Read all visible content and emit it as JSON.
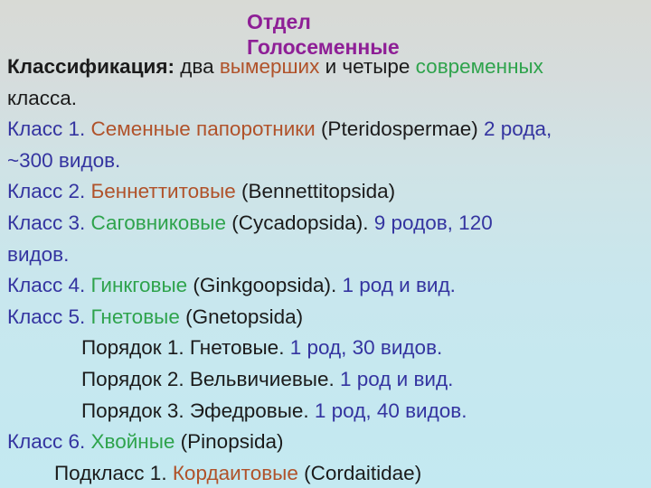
{
  "slide": {
    "colors": {
      "purple": "#8e1f96",
      "black": "#1b1b1b",
      "blue": "#3434a0",
      "green": "#2ea34c",
      "rust": "#b0522a",
      "bg_top": "#d8dad5",
      "bg_bottom": "#c3e9f1"
    },
    "title": {
      "color": "purple",
      "lines": [
        "Отдел",
        "Голосеменные"
      ]
    },
    "body_lines": [
      {
        "indent": 0,
        "segments": [
          {
            "text": "Классификация:",
            "color": "black",
            "bold": true
          },
          {
            "text": " два ",
            "color": "black"
          },
          {
            "text": "вымерших",
            "color": "rust"
          },
          {
            "text": " и четыре ",
            "color": "black"
          },
          {
            "text": "современных",
            "color": "green"
          }
        ]
      },
      {
        "indent": 0,
        "segments": [
          {
            "text": "класса.",
            "color": "black"
          }
        ]
      },
      {
        "indent": 0,
        "segments": [
          {
            "text": "Класс 1.",
            "color": "blue"
          },
          {
            "text": " Семенные папоротники",
            "color": "rust"
          },
          {
            "text": " (Pteridospermae)",
            "color": "black"
          },
          {
            "text": " 2 рода,",
            "color": "blue"
          }
        ]
      },
      {
        "indent": 0,
        "segments": [
          {
            "text": "~300 видов.",
            "color": "blue"
          }
        ]
      },
      {
        "indent": 0,
        "segments": [
          {
            "text": "Класс 2.",
            "color": "blue"
          },
          {
            "text": " Беннеттитовые",
            "color": "rust"
          },
          {
            "text": " (Bennettitopsida)",
            "color": "black"
          }
        ]
      },
      {
        "indent": 0,
        "segments": [
          {
            "text": "Класс 3.",
            "color": "blue"
          },
          {
            "text": " Саговниковые",
            "color": "green"
          },
          {
            "text": " (Cycadopsida).",
            "color": "black"
          },
          {
            "text": " 9 родов, 120",
            "color": "blue"
          }
        ]
      },
      {
        "indent": 0,
        "segments": [
          {
            "text": "видов.",
            "color": "blue"
          }
        ]
      },
      {
        "indent": 0,
        "segments": [
          {
            "text": "Класс 4.",
            "color": "blue"
          },
          {
            "text": " Гинкговые",
            "color": "green"
          },
          {
            "text": " (Ginkgoopsida).",
            "color": "black"
          },
          {
            "text": " 1 род и вид.",
            "color": "blue"
          }
        ]
      },
      {
        "indent": 0,
        "segments": [
          {
            "text": "Класс 5.",
            "color": "blue"
          },
          {
            "text": " Гнетовые",
            "color": "green"
          },
          {
            "text": " (Gnetopsida)",
            "color": "black"
          }
        ]
      },
      {
        "indent": 1,
        "segments": [
          {
            "text": "Порядок 1. Гнетовые.",
            "color": "black"
          },
          {
            "text": " 1 род, 30 видов.",
            "color": "blue"
          }
        ]
      },
      {
        "indent": 1,
        "segments": [
          {
            "text": "Порядок 2. Вельвичиевые.",
            "color": "black"
          },
          {
            "text": " 1 род и вид.",
            "color": "blue"
          }
        ]
      },
      {
        "indent": 1,
        "segments": [
          {
            "text": "Порядок 3. Эфедровые.",
            "color": "black"
          },
          {
            "text": " 1 род, 40 видов.",
            "color": "blue"
          }
        ]
      },
      {
        "indent": 0,
        "segments": [
          {
            "text": "Класс 6.",
            "color": "blue"
          },
          {
            "text": " Хвойные",
            "color": "green"
          },
          {
            "text": " (Pinopsida)",
            "color": "black"
          }
        ]
      },
      {
        "indent": 2,
        "segments": [
          {
            "text": "Подкласс 1.",
            "color": "black"
          },
          {
            "text": " Кордаитовые",
            "color": "rust"
          },
          {
            "text": " (Cordaitidae)",
            "color": "black"
          }
        ]
      }
    ]
  }
}
